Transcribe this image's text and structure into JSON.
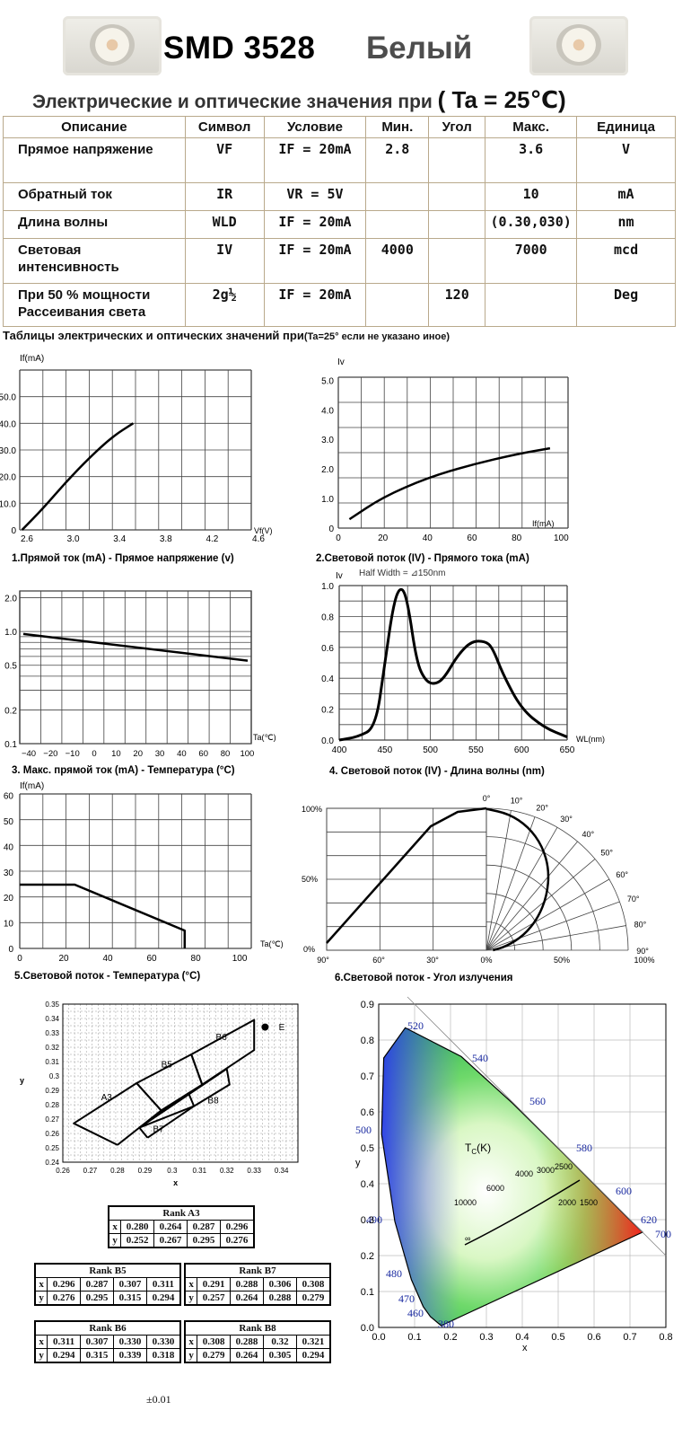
{
  "header": {
    "title_model": "SMD 3528",
    "title_color": "Белый",
    "subtitle": "Электрические и  оптические значения при",
    "subtitle_cond": "( Ta = 25℃)"
  },
  "spec_table": {
    "headers": [
      "Описание",
      "Символ",
      "Условие",
      "Мин.",
      "Угол",
      "Макс.",
      "Единица"
    ],
    "rows": [
      [
        "Прямое напряжение",
        "VF",
        "IF = 20mA",
        "2.8",
        "",
        "3.6",
        "V"
      ],
      [
        "Обратный ток",
        "IR",
        "VR = 5V",
        "",
        "",
        "10",
        "mA"
      ],
      [
        "Длина волны",
        "WLD",
        "IF = 20mA",
        "",
        "",
        "(0.30,030)",
        "nm"
      ],
      [
        "Световая интенсивность",
        "IV",
        "IF = 20mA",
        "4000",
        "",
        "7000",
        "mcd"
      ],
      [
        "При 50 % мощности Рассеивания света",
        "2g½",
        "IF = 20mA",
        "",
        "120",
        "",
        "Deg"
      ]
    ]
  },
  "note": {
    "main": "Таблицы электрических и оптических значений при",
    "cond": "(Ta=25° если не указано иное)"
  },
  "charts": [
    {
      "caption": "1.Прямой ток (mA) -  Прямое напряжение (v)",
      "ylabel": "If(mA)",
      "xlabel": "Vf(V)",
      "xticks": [
        "2.6",
        "3.0",
        "3.4",
        "3.8",
        "4.2",
        "4.6"
      ],
      "yticks": [
        "0",
        "10.0",
        "20.0",
        "30.0",
        "40.0",
        "50.0"
      ]
    },
    {
      "caption": "2.Световой поток (IV) - Прямого тока (mA)",
      "ylabel": "Iv",
      "xlabel": "If(mA)",
      "xticks": [
        "0",
        "20",
        "40",
        "60",
        "80",
        "100"
      ],
      "yticks": [
        "0",
        "1.0",
        "2.0",
        "3.0",
        "4.0",
        "5.0"
      ]
    },
    {
      "caption": "3. Макс. прямой ток (mA) - Температура (°C)",
      "xlabel": "Ta(℃)",
      "xticks": [
        "−40",
        "−20",
        "−10",
        "0",
        "10",
        "20",
        "30",
        "40",
        "60",
        "80",
        "100"
      ],
      "yticks": [
        "2.0",
        "1.0",
        "0.5",
        "0.2",
        "0.1"
      ]
    },
    {
      "caption": "4. Световой поток (IV) - Длина волны (nm)",
      "ylabel": "Iv",
      "xlabel": "WL(nm)",
      "annot": "Half Width = ⊿150nm",
      "xticks": [
        "400",
        "450",
        "500",
        "550",
        "600",
        "650"
      ],
      "yticks": [
        "0.0",
        "0.2",
        "0.4",
        "0.6",
        "0.8",
        "1.0"
      ]
    },
    {
      "caption": "5.Световой поток - Температура (°C)",
      "ylabel": "If(mA)",
      "xlabel": "Ta(℃)",
      "xticks": [
        "0",
        "20",
        "40",
        "60",
        "80",
        "100"
      ],
      "yticks": [
        "0",
        "10",
        "20",
        "30",
        "40",
        "50",
        "60"
      ]
    },
    {
      "caption": "6.Световой поток - Угол излучения",
      "angles": [
        "0°",
        "10°",
        "20°",
        "30°",
        "40°",
        "50°",
        "60°",
        "70°",
        "80°",
        "90°"
      ],
      "yticks": [
        "100%",
        "50%",
        "0%"
      ],
      "xticks": [
        "90°",
        "60°",
        "30°",
        "0%",
        "50%",
        "100%"
      ]
    }
  ],
  "chart_data": [
    {
      "type": "line",
      "title": "1.Прямой ток (mA) -  Прямое напряжение (v)",
      "xlabel": "Vf(V)",
      "ylabel": "If(mA)",
      "xlim": [
        2.6,
        4.6
      ],
      "ylim": [
        0,
        50
      ],
      "x": [
        2.62,
        2.8,
        3.0,
        3.2,
        3.4,
        3.58
      ],
      "y": [
        0,
        8,
        18,
        27,
        35,
        40
      ]
    },
    {
      "type": "line",
      "title": "2.Световой поток (IV) - Прямого тока (mA)",
      "xlabel": "If(mA)",
      "ylabel": "Iv",
      "xlim": [
        0,
        100
      ],
      "ylim": [
        0,
        5
      ],
      "x": [
        5,
        20,
        40,
        60,
        80,
        95
      ],
      "y": [
        0.3,
        1.05,
        1.7,
        2.15,
        2.5,
        2.7
      ]
    },
    {
      "type": "line",
      "title": "3. Макс. прямой ток (mA) - Температура (°C)",
      "xlabel": "Ta(℃)",
      "log_y": true,
      "x": [
        -40,
        100
      ],
      "y": [
        0.95,
        0.55
      ]
    },
    {
      "type": "line",
      "title": "4. Световой поток (IV) - Длина волны (nm)",
      "xlabel": "WL(nm)",
      "ylabel": "Iv",
      "xlim": [
        400,
        650
      ],
      "ylim": [
        0,
        1
      ],
      "x": [
        400,
        420,
        440,
        450,
        460,
        468,
        475,
        485,
        495,
        505,
        515,
        530,
        545,
        560,
        568,
        580,
        600,
        625,
        650
      ],
      "y": [
        0,
        0.02,
        0.08,
        0.5,
        0.9,
        1.0,
        0.9,
        0.5,
        0.38,
        0.36,
        0.4,
        0.55,
        0.64,
        0.64,
        0.6,
        0.42,
        0.2,
        0.08,
        0.02
      ]
    },
    {
      "type": "line",
      "title": "5.Световой поток - Температура (°C)",
      "xlabel": "Ta(℃)",
      "ylabel": "If(mA)",
      "xlim": [
        0,
        100
      ],
      "ylim": [
        0,
        60
      ],
      "x": [
        0,
        25,
        75,
        75
      ],
      "y": [
        25,
        25,
        7,
        0
      ]
    },
    {
      "type": "polar",
      "title": "6.Световой поток - Угол излучения",
      "angles_deg": [
        0,
        10,
        20,
        30,
        40,
        50,
        60,
        70,
        80,
        90
      ],
      "relative": [
        1.0,
        0.98,
        0.93,
        0.85,
        0.74,
        0.6,
        0.45,
        0.3,
        0.15,
        0.05
      ]
    },
    {
      "type": "scatter",
      "title": "CIE bins",
      "xlabel": "x",
      "ylabel": "y",
      "xlim": [
        0.26,
        0.34
      ],
      "ylim": [
        0.24,
        0.35
      ],
      "series": [
        {
          "name": "A3",
          "values": [
            [
              0.28,
              0.252
            ],
            [
              0.264,
              0.267
            ],
            [
              0.287,
              0.295
            ],
            [
              0.296,
              0.276
            ]
          ]
        },
        {
          "name": "B5",
          "values": [
            [
              0.296,
              0.276
            ],
            [
              0.287,
              0.295
            ],
            [
              0.307,
              0.315
            ],
            [
              0.311,
              0.294
            ]
          ]
        },
        {
          "name": "B7",
          "values": [
            [
              0.291,
              0.257
            ],
            [
              0.288,
              0.264
            ],
            [
              0.306,
              0.288
            ],
            [
              0.308,
              0.279
            ]
          ]
        },
        {
          "name": "B6",
          "values": [
            [
              0.311,
              0.294
            ],
            [
              0.307,
              0.315
            ],
            [
              0.33,
              0.339
            ],
            [
              0.33,
              0.318
            ]
          ]
        },
        {
          "name": "B8",
          "values": [
            [
              0.308,
              0.279
            ],
            [
              0.288,
              0.264
            ],
            [
              0.32,
              0.305
            ],
            [
              0.321,
              0.294
            ]
          ]
        }
      ],
      "xticks": [
        "0.26",
        "0.27",
        "0.28",
        "0.29",
        "0.3",
        "0.31",
        "0.32",
        "0.33",
        "0.34"
      ],
      "yticks": [
        "0.24",
        "0.25",
        "0.26",
        "0.27",
        "0.28",
        "0.29",
        "0.3",
        "0.31",
        "0.32",
        "0.33",
        "0.34",
        "0.35"
      ],
      "labels": [
        "A3",
        "B5",
        "B6",
        "B7",
        "B8",
        "E"
      ]
    },
    {
      "type": "area",
      "title": "CIE 1931",
      "xlabel": "x",
      "ylabel": "y",
      "xlim": [
        0,
        0.8
      ],
      "ylim": [
        0,
        0.9
      ],
      "wavelengths": [
        "380",
        "460",
        "470",
        "480",
        "490",
        "500",
        "520",
        "540",
        "560",
        "580",
        "600",
        "620",
        "700"
      ],
      "cct": [
        "10000",
        "6000",
        "4000",
        "3000",
        "2500",
        "2000",
        "1500",
        "∞"
      ],
      "cct_label": "T",
      "cct_sub": "C",
      "cct_unit": "(K)",
      "xticks": [
        "0.0",
        "0.1",
        "0.2",
        "0.3",
        "0.4",
        "0.5",
        "0.6",
        "0.7",
        "0.8"
      ],
      "yticks": [
        "0.0",
        "0.1",
        "0.2",
        "0.3",
        "0.4",
        "0.5",
        "0.6",
        "0.7",
        "0.8",
        "0.9"
      ]
    }
  ],
  "rank_tables": [
    {
      "name": "Rank A3",
      "x": [
        "0.280",
        "0.264",
        "0.287",
        "0.296"
      ],
      "y": [
        "0.252",
        "0.267",
        "0.295",
        "0.276"
      ]
    },
    {
      "name": "Rank B5",
      "x": [
        "0.296",
        "0.287",
        "0.307",
        "0.311"
      ],
      "y": [
        "0.276",
        "0.295",
        "0.315",
        "0.294"
      ]
    },
    {
      "name": "Rank B7",
      "x": [
        "0.291",
        "0.288",
        "0.306",
        "0.308"
      ],
      "y": [
        "0.257",
        "0.264",
        "0.288",
        "0.279"
      ]
    },
    {
      "name": "Rank B6",
      "x": [
        "0.311",
        "0.307",
        "0.330",
        "0.330"
      ],
      "y": [
        "0.294",
        "0.315",
        "0.339",
        "0.318"
      ]
    },
    {
      "name": "Rank B8",
      "x": [
        "0.308",
        "0.288",
        "0.32",
        "0.321"
      ],
      "y": [
        "0.279",
        "0.264",
        "0.305",
        "0.294"
      ]
    }
  ],
  "rank_labels": {
    "x": "x",
    "y": "y"
  },
  "tolerance": "±0.01",
  "colors": {
    "table_border": "#b9a98c",
    "cie_label": "#1a2aa0"
  }
}
